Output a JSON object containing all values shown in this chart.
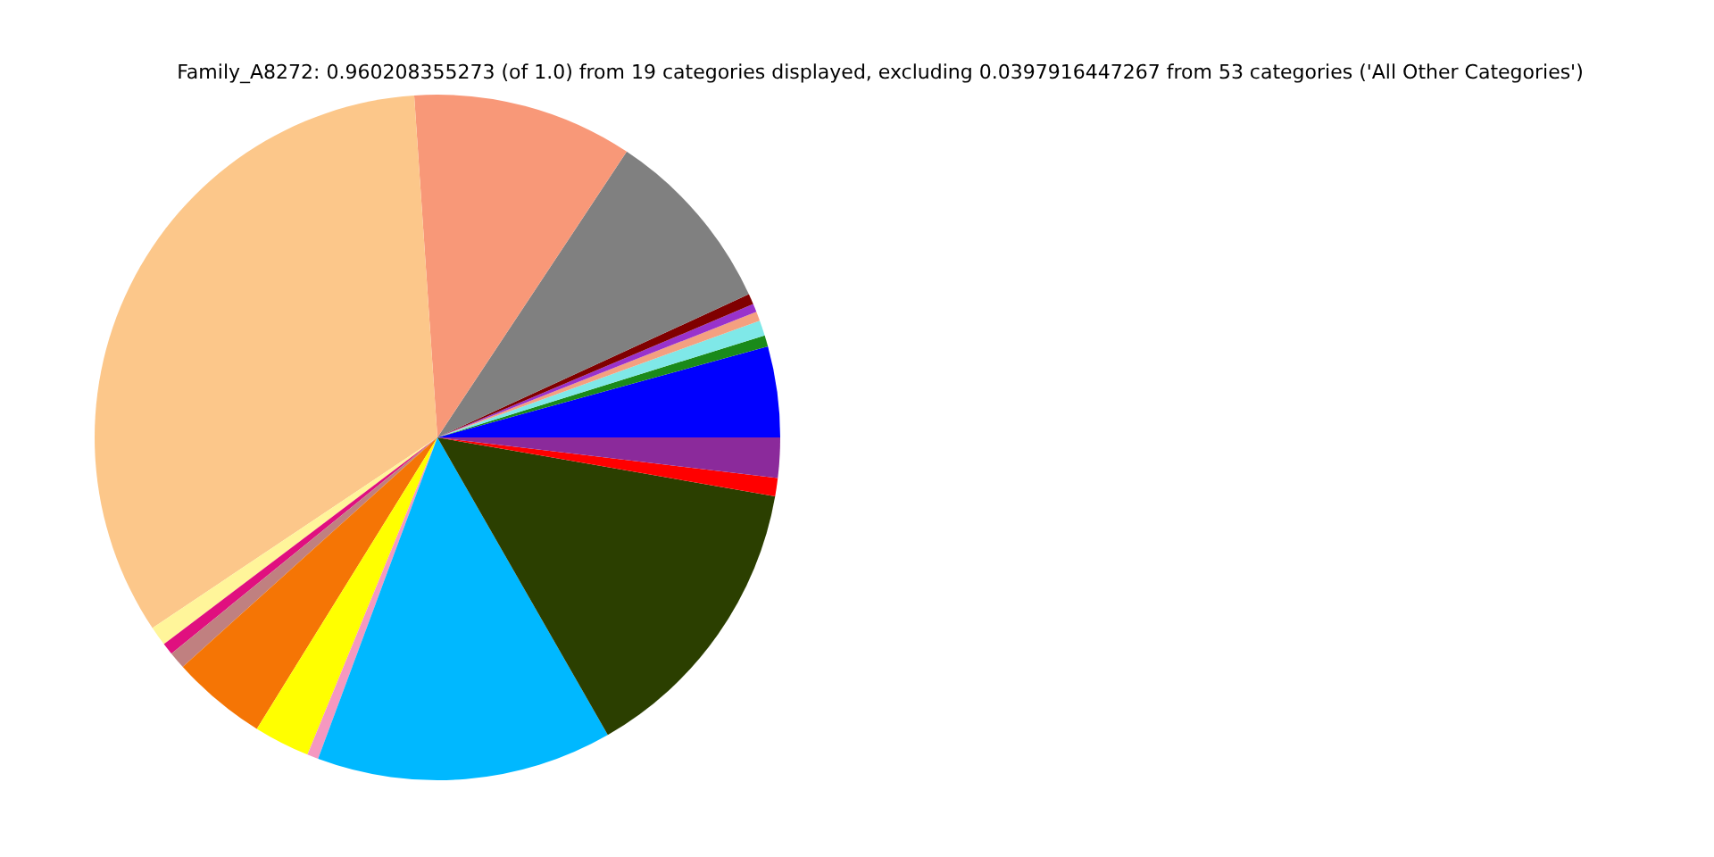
{
  "chart_data": {
    "type": "pie",
    "title": "Family_A8272: 0.960208355273 (of 1.0) from 19 categories displayed, excluding 0.0397916447267 from 53 categories ('All Other Categories')",
    "categories": [
      null,
      null,
      null,
      null,
      null,
      null,
      null,
      null,
      null,
      null,
      null,
      null,
      null,
      null,
      null,
      null,
      null,
      null,
      null
    ],
    "values": [
      4.28,
      0.53,
      0.72,
      0.44,
      0.39,
      0.5,
      8.83,
      10.39,
      33.3,
      0.92,
      0.56,
      0.81,
      4.5,
      2.64,
      0.53,
      13.94,
      13.97,
      0.86,
      1.89
    ],
    "colors": [
      "#0000ff",
      "#1a8a1a",
      "#7fe8e8",
      "#f4a080",
      "#9932cc",
      "#800000",
      "#808080",
      "#f89878",
      "#fcc78a",
      "#fff59a",
      "#e0107f",
      "#c08080",
      "#f57505",
      "#ffff00",
      "#f598c0",
      "#00b8ff",
      "#2b3f00",
      "#ff0000",
      "#8b2a9b"
    ],
    "legend": false
  }
}
